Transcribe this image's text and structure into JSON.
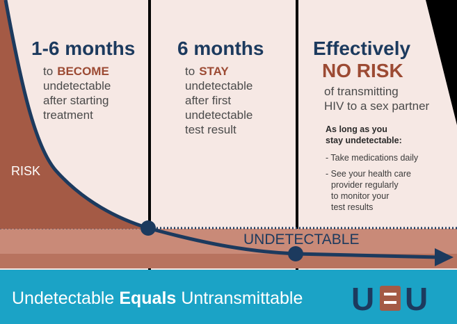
{
  "panels": [
    {
      "heading": "1-6 months",
      "lead": "to",
      "emphasis": "BECOME",
      "lines": [
        "undetectable",
        "after starting",
        "treatment"
      ]
    },
    {
      "heading": "6 months",
      "lead": "to",
      "emphasis": "STAY",
      "lines": [
        "undetectable",
        "after first",
        "undetectable",
        "test result"
      ]
    },
    {
      "heading": "Effectively",
      "emphasis": "NO RISK",
      "lines": [
        "of transmitting",
        "HIV to a sex partner"
      ],
      "note_heading": [
        "As long as you",
        "stay undetectable:"
      ],
      "bullets": [
        [
          "- Take medications daily"
        ],
        [
          "- See your health care",
          "provider regularly",
          "to monitor your",
          "test results"
        ]
      ]
    }
  ],
  "risk_label": "RISK",
  "band_label": "UNDETECTABLE",
  "banner": {
    "parts": [
      "Undetectable",
      "Equals",
      "Untransmittable"
    ],
    "logo": [
      "U",
      "U"
    ]
  }
}
